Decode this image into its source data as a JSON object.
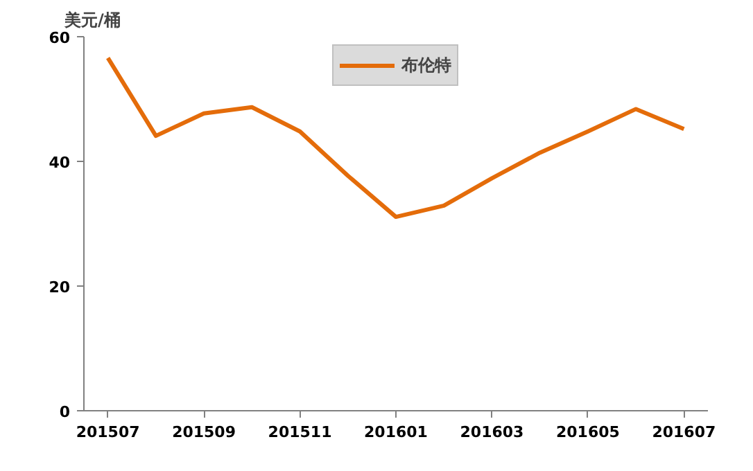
{
  "chart_data": {
    "type": "line",
    "ylabel": "美元/桶",
    "categories": [
      "201507",
      null,
      "201509",
      null,
      "201511",
      null,
      "201601",
      null,
      "201603",
      null,
      "201605",
      null,
      "201607"
    ],
    "series": [
      {
        "name": "布伦特",
        "color": "#e46c0a",
        "values": [
          56.6,
          44.1,
          47.7,
          48.7,
          44.8,
          37.7,
          31.1,
          32.9,
          37.3,
          41.4,
          44.8,
          48.4,
          45.2
        ]
      }
    ],
    "ylim": [
      0,
      60
    ],
    "yticks": [
      0,
      20,
      40,
      60
    ],
    "grid": false,
    "legend": "top",
    "marker": "none",
    "line_style": "solid"
  }
}
